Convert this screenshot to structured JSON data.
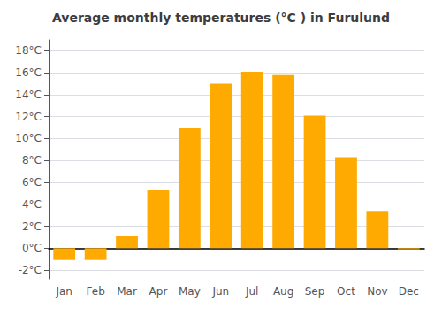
{
  "chart_data": {
    "type": "bar",
    "title": "Average monthly temperatures (°C ) in Furulund",
    "categories": [
      "Jan",
      "Feb",
      "Mar",
      "Apr",
      "May",
      "Jun",
      "Jul",
      "Aug",
      "Sep",
      "Oct",
      "Nov",
      "Dec"
    ],
    "values": [
      -1.0,
      -1.0,
      1.1,
      5.3,
      11.0,
      15.0,
      16.1,
      15.8,
      12.1,
      8.3,
      3.4,
      -0.1
    ],
    "color": "#FFAA00",
    "ylim": [
      -2.8,
      19.0
    ],
    "yticks": [
      {
        "value": -2,
        "label": "-2°C"
      },
      {
        "value": 0,
        "label": "0°C"
      },
      {
        "value": 2,
        "label": "2°C"
      },
      {
        "value": 4,
        "label": "4°C"
      },
      {
        "value": 6,
        "label": "6°C"
      },
      {
        "value": 8,
        "label": "8°C"
      },
      {
        "value": 10,
        "label": "10°C"
      },
      {
        "value": 12,
        "label": "12°C"
      },
      {
        "value": 14,
        "label": "14°C"
      },
      {
        "value": 16,
        "label": "16°C"
      },
      {
        "value": 18,
        "label": "18°C"
      }
    ],
    "grid": true
  }
}
